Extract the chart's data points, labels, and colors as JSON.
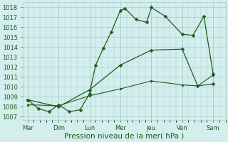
{
  "x_labels": [
    "Mar",
    "Dim",
    "Lun",
    "Mer",
    "Jeu",
    "Ven",
    "Sam"
  ],
  "x_positions": [
    0,
    1,
    2,
    3,
    4,
    5,
    6
  ],
  "line1_x": [
    0,
    0.35,
    0.7,
    1.0,
    1.35,
    1.7,
    2.0,
    2.2,
    2.45,
    2.7,
    3.0,
    3.15,
    3.5,
    3.85,
    4.0,
    4.45,
    5.0,
    5.35,
    5.7,
    6.0
  ],
  "line1_y": [
    1008.7,
    1007.8,
    1007.5,
    1008.2,
    1007.5,
    1007.7,
    1009.3,
    1012.2,
    1013.9,
    1015.5,
    1017.7,
    1017.9,
    1016.8,
    1016.5,
    1018.0,
    1017.1,
    1015.3,
    1015.2,
    1017.1,
    1011.3
  ],
  "line2_x": [
    0,
    1,
    2,
    3,
    4,
    5,
    5.5,
    6
  ],
  "line2_y": [
    1008.7,
    1008.0,
    1009.7,
    1012.2,
    1013.7,
    1013.8,
    1010.1,
    1010.3
  ],
  "line3_x": [
    0,
    1,
    2,
    3,
    4,
    5,
    5.5,
    6
  ],
  "line3_y": [
    1008.2,
    1008.1,
    1009.1,
    1009.8,
    1010.6,
    1010.2,
    1010.1,
    1011.2
  ],
  "ylim": [
    1006.7,
    1018.5
  ],
  "yticks": [
    1007,
    1008,
    1009,
    1010,
    1011,
    1012,
    1013,
    1014,
    1015,
    1016,
    1017,
    1018
  ],
  "xlabel": "Pression niveau de la mer( hPa )",
  "xlabel_fontsize": 7.5,
  "background_color": "#d4eeee",
  "grid_color": "#a8cccc",
  "line_color": "#1a5e1a",
  "tick_fontsize": 6.0,
  "marker_size": 2.5,
  "linewidth1": 0.9,
  "linewidth2": 0.9,
  "linewidth3": 0.8
}
